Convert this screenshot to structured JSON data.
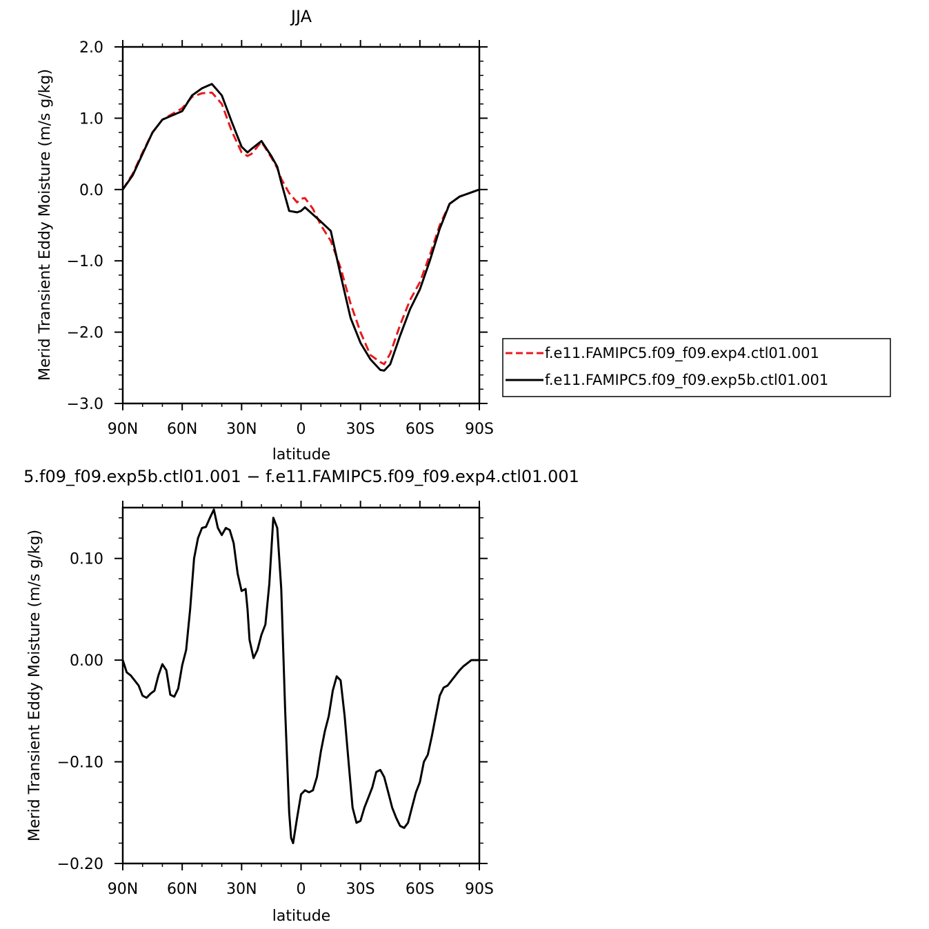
{
  "figure": {
    "title": "JJA",
    "subtitle": "5.f09_f09.exp5b.ctl01.001 − f.e11.FAMIPC5.f09_f09.exp4.ctl01.001"
  },
  "colors": {
    "exp4": "#e8191c",
    "exp5b": "#000000"
  },
  "chart_data": [
    {
      "type": "line",
      "title": "JJA",
      "xlabel": "latitude",
      "ylabel": "Merid Transient Eddy Moisture (m/s g/kg)",
      "xlim": [
        90,
        -90
      ],
      "ylim": [
        -3.0,
        2.0
      ],
      "x_ticks": [
        "90N",
        "60N",
        "30N",
        "0",
        "30S",
        "60S",
        "90S"
      ],
      "x_tick_values": [
        90,
        60,
        30,
        0,
        -30,
        -60,
        -90
      ],
      "y_ticks": [
        "2.0",
        "1.0",
        "0.0",
        "−1.0",
        "−2.0",
        "−3.0"
      ],
      "y_tick_values": [
        2.0,
        1.0,
        0.0,
        -1.0,
        -2.0,
        -3.0
      ],
      "legend_position": "outside-right",
      "x": [
        90,
        85,
        80,
        75,
        70,
        65,
        60,
        55,
        50,
        45,
        40,
        35,
        30,
        27,
        25,
        20,
        15,
        12,
        10,
        6,
        2,
        0,
        -2,
        -6,
        -10,
        -15,
        -20,
        -25,
        -30,
        -35,
        -40,
        -42,
        -45,
        -50,
        -55,
        -60,
        -65,
        -70,
        -75,
        -80,
        -85,
        -90
      ],
      "series": [
        {
          "name": "f.e11.FAMIPC5.f09_f09.exp4.ctl01.001",
          "style": "dashed",
          "values": [
            0.0,
            0.22,
            0.52,
            0.8,
            0.98,
            1.06,
            1.14,
            1.3,
            1.35,
            1.36,
            1.2,
            0.82,
            0.52,
            0.47,
            0.5,
            0.67,
            0.45,
            0.3,
            0.15,
            -0.05,
            -0.18,
            -0.13,
            -0.12,
            -0.27,
            -0.5,
            -0.72,
            -1.1,
            -1.6,
            -2.0,
            -2.32,
            -2.42,
            -2.45,
            -2.3,
            -1.9,
            -1.55,
            -1.3,
            -0.92,
            -0.5,
            -0.2,
            -0.1,
            -0.05,
            0.0
          ]
        },
        {
          "name": "f.e11.FAMIPC5.f09_f09.exp5b.ctl01.001",
          "style": "solid",
          "values": [
            0.0,
            0.2,
            0.5,
            0.8,
            0.98,
            1.04,
            1.1,
            1.32,
            1.42,
            1.48,
            1.32,
            0.95,
            0.6,
            0.52,
            0.57,
            0.68,
            0.47,
            0.32,
            0.1,
            -0.3,
            -0.32,
            -0.3,
            -0.25,
            -0.35,
            -0.45,
            -0.58,
            -1.2,
            -1.8,
            -2.15,
            -2.38,
            -2.53,
            -2.54,
            -2.45,
            -2.05,
            -1.68,
            -1.4,
            -1.0,
            -0.55,
            -0.2,
            -0.1,
            -0.05,
            0.0
          ]
        }
      ]
    },
    {
      "type": "line",
      "title": "5.f09_f09.exp5b.ctl01.001 − f.e11.FAMIPC5.f09_f09.exp4.ctl01.001",
      "xlabel": "latitude",
      "ylabel": "Merid Transient Eddy Moisture (m/s g/kg)",
      "xlim": [
        90,
        -90
      ],
      "ylim": [
        -0.2,
        0.15
      ],
      "x_ticks": [
        "90N",
        "60N",
        "30N",
        "0",
        "30S",
        "60S",
        "90S"
      ],
      "x_tick_values": [
        90,
        60,
        30,
        0,
        -30,
        -60,
        -90
      ],
      "y_ticks": [
        "0.10",
        "0.00",
        "−0.10",
        "−0.20"
      ],
      "y_tick_values": [
        0.1,
        0.0,
        -0.1,
        -0.2
      ],
      "x": [
        90,
        88,
        86,
        84,
        82,
        80,
        78,
        76,
        74,
        72,
        70,
        68,
        66,
        64,
        62,
        60,
        58,
        56,
        54,
        52,
        50,
        48,
        46,
        44,
        42,
        40,
        38,
        36,
        34,
        32,
        30,
        28,
        27,
        26,
        24,
        22,
        20,
        18,
        16,
        14,
        12,
        10,
        8,
        6,
        5,
        4,
        2,
        0,
        -2,
        -4,
        -6,
        -8,
        -10,
        -12,
        -14,
        -16,
        -18,
        -20,
        -22,
        -24,
        -26,
        -28,
        -30,
        -32,
        -34,
        -36,
        -38,
        -40,
        -42,
        -44,
        -46,
        -48,
        -50,
        -52,
        -54,
        -56,
        -58,
        -60,
        -62,
        -64,
        -66,
        -68,
        -70,
        -72,
        -74,
        -76,
        -78,
        -80,
        -82,
        -84,
        -86,
        -88,
        -90
      ],
      "series": [
        {
          "values": [
            0.0,
            -0.012,
            -0.015,
            -0.02,
            -0.025,
            -0.035,
            -0.037,
            -0.033,
            -0.03,
            -0.015,
            -0.004,
            -0.01,
            -0.034,
            -0.036,
            -0.028,
            -0.005,
            0.01,
            0.05,
            0.1,
            0.12,
            0.13,
            0.131,
            0.14,
            0.148,
            0.13,
            0.123,
            0.13,
            0.128,
            0.115,
            0.085,
            0.068,
            0.07,
            0.05,
            0.02,
            0.002,
            0.01,
            0.025,
            0.035,
            0.075,
            0.14,
            0.13,
            0.07,
            -0.05,
            -0.15,
            -0.175,
            -0.18,
            -0.155,
            -0.132,
            -0.128,
            -0.13,
            -0.128,
            -0.115,
            -0.09,
            -0.07,
            -0.055,
            -0.03,
            -0.016,
            -0.02,
            -0.055,
            -0.1,
            -0.145,
            -0.16,
            -0.158,
            -0.145,
            -0.135,
            -0.125,
            -0.11,
            -0.108,
            -0.115,
            -0.13,
            -0.145,
            -0.155,
            -0.163,
            -0.165,
            -0.16,
            -0.145,
            -0.13,
            -0.12,
            -0.1,
            -0.093,
            -0.075,
            -0.055,
            -0.035,
            -0.027,
            -0.025,
            -0.02,
            -0.015,
            -0.01,
            -0.006,
            -0.003,
            0.0,
            0.0,
            0.0
          ]
        }
      ]
    }
  ]
}
